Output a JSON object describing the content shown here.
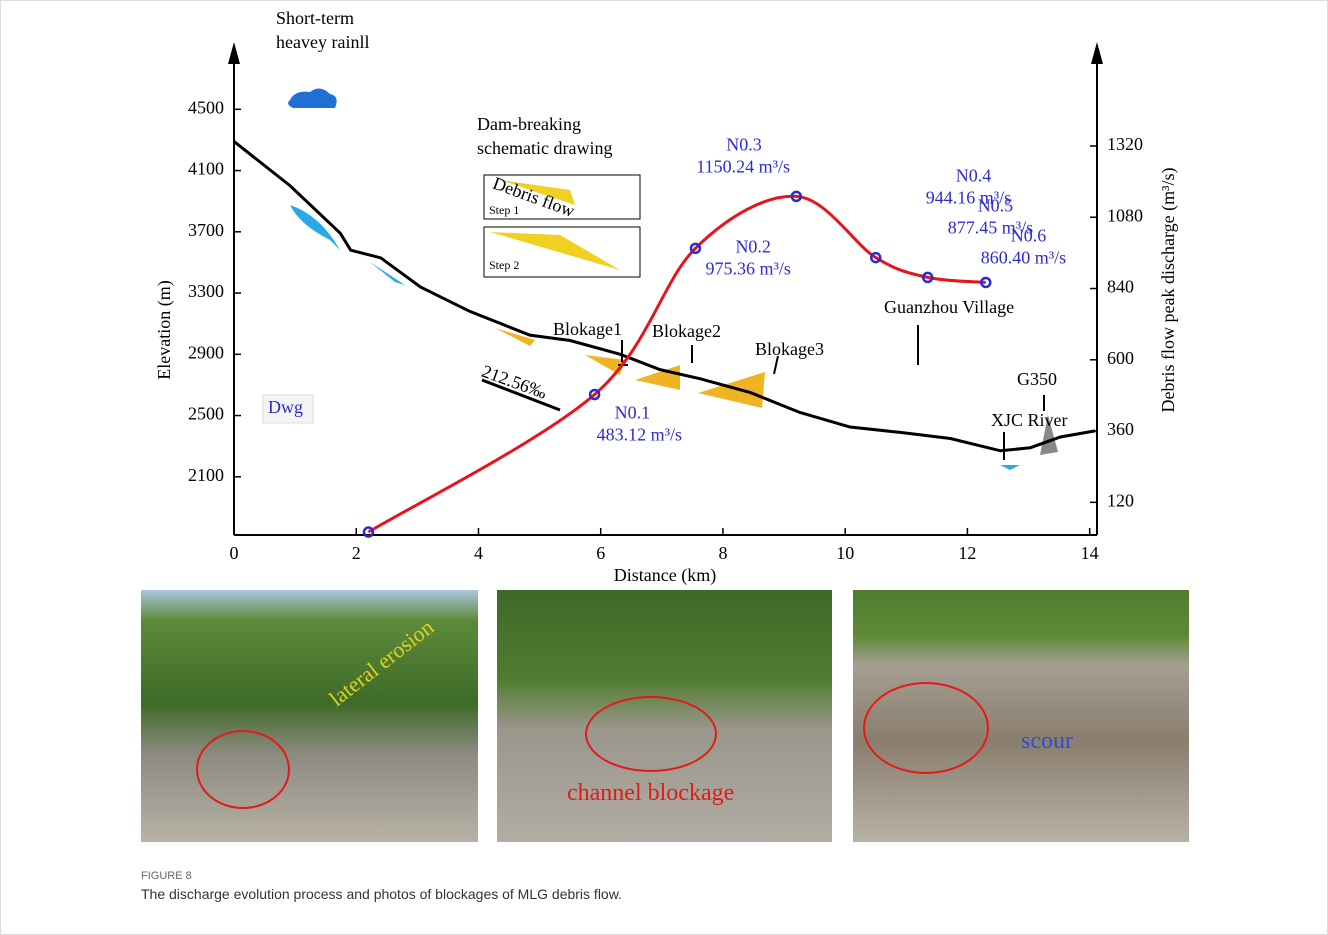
{
  "chart_data": {
    "type": "line",
    "x_label": "Distance (km)",
    "y_label": "Elevation (m)",
    "y2_label": "Debris flow peak discharge (m³/s)",
    "xlim": [
      0,
      14.12
    ],
    "xticks": [
      0,
      2,
      4,
      6,
      8,
      10,
      12,
      14
    ],
    "ylim": [
      1720,
      4920
    ],
    "yticks": [
      2100,
      2500,
      2900,
      3300,
      3700,
      4100,
      4500
    ],
    "y2lim": [
      10,
      1660
    ],
    "y2ticks": [
      120,
      360,
      600,
      840,
      1080,
      1320
    ],
    "series": [
      {
        "color": "#000000",
        "x": [
          0,
          0.92,
          1.74,
          1.91,
          2.4,
          3.05,
          3.86,
          4.84,
          5.5,
          6.32,
          6.97,
          7.63,
          8.45,
          9.26,
          10.08,
          10.9,
          11.72,
          12.54,
          13.03,
          13.52,
          14.09
        ],
        "values": [
          4290,
          4000,
          3690,
          3580,
          3530,
          3340,
          3180,
          3025,
          2990,
          2900,
          2800,
          2740,
          2650,
          2520,
          2425,
          2390,
          2350,
          2270,
          2290,
          2360,
          2400
        ]
      },
      {
        "color": "#e8141c",
        "axis": "y2",
        "marker_color": "#2b2bd6",
        "x": [
          2.2,
          5.9,
          7.55,
          9.2,
          10.5,
          11.35,
          12.3
        ],
        "values": [
          20,
          483.12,
          975.36,
          1150.24,
          944.16,
          877.45,
          860.4
        ],
        "point_labels": [
          null,
          "N0.1",
          "N0.2",
          "N0.3",
          "N0.4",
          "N0.5",
          "N0.6"
        ],
        "value_labels": [
          null,
          "483.12 m³/s",
          "975.36 m³/s",
          "1150.24 m³/s",
          "944.16 m³/s",
          "877.45 m³/s",
          "860.40 m³/s"
        ]
      }
    ],
    "annotations": [
      "Short-term",
      "heavey rainll",
      "Dam-breaking",
      "schematic drawing",
      "Debris flow",
      "Step 1",
      "Step 2",
      "Blokage1",
      "Blokage2",
      "Blokage3",
      "Guanzhou Village",
      "XJC River",
      "G350",
      "Dwg",
      "212.56‰"
    ]
  },
  "photos": [
    {
      "caption": "lateral erosion"
    },
    {
      "caption": "channel blockage"
    },
    {
      "caption": "scour"
    }
  ],
  "figure": {
    "label": "FIGURE 8",
    "caption": "The discharge evolution process and photos of blockages of MLG debris flow."
  }
}
